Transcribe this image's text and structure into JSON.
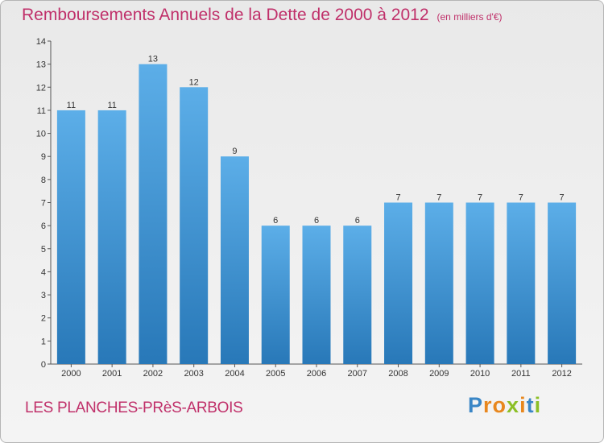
{
  "header": {
    "title": "Remboursements Annuels de la Dette de 2000 à 2012",
    "subtitle": "(en milliers d'€)"
  },
  "footer": {
    "commune": "LES PLANCHES-PRèS-ARBOIS",
    "logo": [
      "P",
      "r",
      "o",
      "x",
      "i",
      "t",
      "i"
    ]
  },
  "colors": {
    "title": "#c0306a",
    "bar_top": "#5caee8",
    "bar_bottom": "#2878b8",
    "logo": [
      "#3a86c6",
      "#e8871e",
      "#e8871e",
      "#8cbf26",
      "#e8871e",
      "#3a86c6",
      "#8cbf26"
    ]
  },
  "chart_data": {
    "type": "bar",
    "title": "Remboursements Annuels de la Dette de 2000 à 2012",
    "subtitle": "(en milliers d'€)",
    "categories": [
      "2000",
      "2001",
      "2002",
      "2003",
      "2004",
      "2005",
      "2006",
      "2007",
      "2008",
      "2009",
      "2010",
      "2011",
      "2012"
    ],
    "values": [
      11,
      11,
      13,
      12,
      9,
      6,
      6,
      6,
      7,
      7,
      7,
      7,
      7
    ],
    "ylim": [
      0,
      14
    ],
    "yticks": [
      0,
      1,
      2,
      3,
      4,
      5,
      6,
      7,
      8,
      9,
      10,
      11,
      12,
      13,
      14
    ],
    "grid": false,
    "data_labels": true
  }
}
